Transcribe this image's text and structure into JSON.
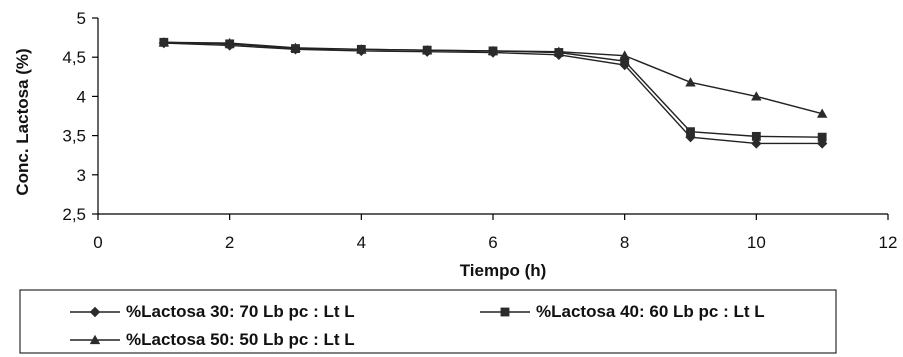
{
  "chart_data": {
    "type": "line",
    "title": "",
    "xlabel": "Tiempo (h)",
    "ylabel": "Conc. Lactosa (%)",
    "xlim": [
      0,
      12
    ],
    "ylim": [
      2.5,
      5
    ],
    "x_ticks": [
      0,
      2,
      4,
      6,
      8,
      10,
      12
    ],
    "y_ticks": [
      2.5,
      3,
      3.5,
      4,
      4.5,
      5
    ],
    "x_tick_labels": [
      "0",
      "2",
      "4",
      "6",
      "8",
      "10",
      "12"
    ],
    "y_tick_labels": [
      "2,5",
      "3",
      "3,5",
      "4",
      "4,5",
      "5"
    ],
    "grid": false,
    "legend_position": "bottom",
    "series": [
      {
        "name": "%Lactosa 30: 70 Lb pc : Lt L",
        "marker": "diamond",
        "x": [
          1,
          2,
          3,
          4,
          5,
          6,
          7,
          8,
          9,
          10,
          11
        ],
        "y": [
          4.68,
          4.65,
          4.6,
          4.58,
          4.57,
          4.56,
          4.53,
          4.4,
          3.48,
          3.4,
          3.4
        ]
      },
      {
        "name": "%Lactosa 40: 60 Lb pc : Lt L",
        "marker": "square",
        "x": [
          1,
          2,
          3,
          4,
          5,
          6,
          7,
          8,
          9,
          10,
          11
        ],
        "y": [
          4.69,
          4.67,
          4.61,
          4.6,
          4.59,
          4.58,
          4.56,
          4.45,
          3.55,
          3.49,
          3.48
        ]
      },
      {
        "name": "%Lactosa 50: 50 Lb pc : Lt L",
        "marker": "triangle",
        "x": [
          1,
          2,
          3,
          4,
          5,
          6,
          7,
          8,
          9,
          10,
          11
        ],
        "y": [
          4.69,
          4.68,
          4.62,
          4.6,
          4.59,
          4.58,
          4.57,
          4.52,
          4.18,
          4.0,
          3.78
        ]
      }
    ],
    "colors": {
      "line": "#222222",
      "marker": "#2b2b2b",
      "axis": "#000000"
    }
  }
}
